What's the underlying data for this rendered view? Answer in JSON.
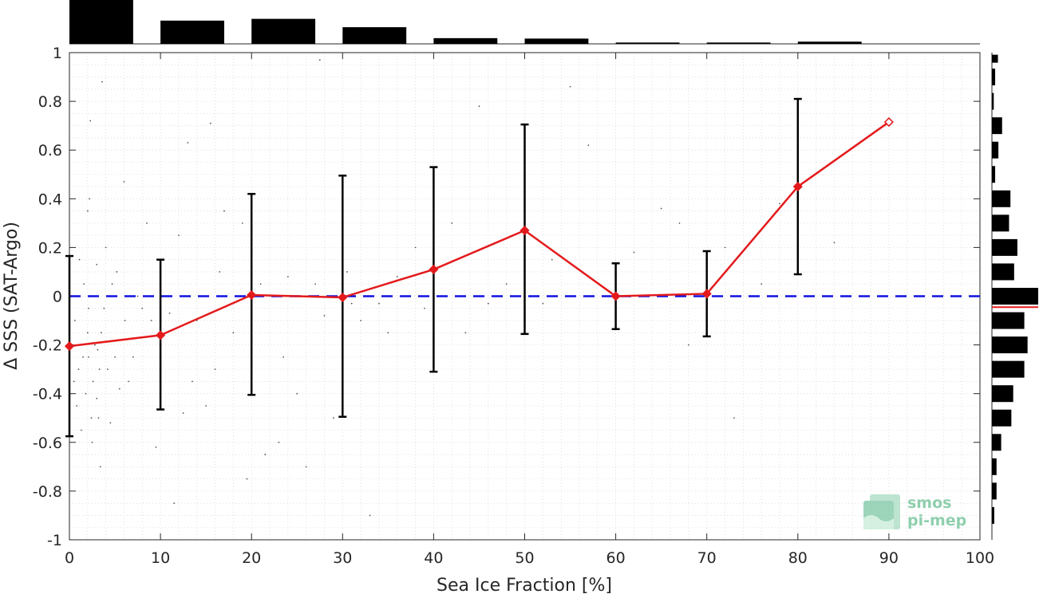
{
  "chart_data": {
    "type": "line",
    "xlabel": "Sea Ice Fraction [%]",
    "ylabel": "Δ SSS (SAT-Argo)",
    "xlim": [
      0,
      100
    ],
    "ylim": [
      -1,
      1
    ],
    "x_ticks": [
      "0",
      "10",
      "20",
      "30",
      "40",
      "50",
      "60",
      "70",
      "80",
      "90",
      "100"
    ],
    "y_ticks": [
      "1",
      "0.8",
      "0.6",
      "0.4",
      "0.2",
      "0",
      "-0.2",
      "-0.4",
      "-0.6",
      "-0.8",
      "-1"
    ],
    "grid": true,
    "series": [
      {
        "color": "#e31a1c",
        "marker": "diamond",
        "x": [
          0,
          10,
          20,
          30,
          40,
          50,
          60,
          70,
          80,
          90
        ],
        "y": [
          -0.205,
          -0.16,
          0.005,
          -0.005,
          0.11,
          0.27,
          0.0,
          0.01,
          0.45,
          0.715
        ],
        "err_low": [
          -0.575,
          -0.465,
          -0.405,
          -0.495,
          -0.31,
          -0.155,
          -0.135,
          -0.165,
          0.09,
          null
        ],
        "err_high": [
          0.165,
          0.15,
          0.42,
          0.495,
          0.53,
          0.705,
          0.135,
          0.185,
          0.81,
          null
        ]
      }
    ],
    "reference_line": {
      "y": 0,
      "style": "dashed",
      "color": "#1010e0"
    },
    "top_histogram": {
      "bin_edges": [
        0,
        10,
        20,
        30,
        40,
        50,
        60,
        70,
        80,
        90
      ],
      "relative_counts": [
        1.0,
        0.53,
        0.57,
        0.38,
        0.13,
        0.12,
        0.03,
        0.03,
        0.05
      ]
    },
    "right_histogram": {
      "bin_centers": [
        0.975,
        0.9,
        0.8,
        0.7,
        0.6,
        0.5,
        0.4,
        0.3,
        0.2,
        0.1,
        0.0,
        -0.1,
        -0.2,
        -0.3,
        -0.4,
        -0.5,
        -0.6,
        -0.7,
        -0.8,
        -0.9
      ],
      "relative_counts": [
        0.13,
        0.07,
        0.04,
        0.22,
        0.14,
        0.07,
        0.4,
        0.37,
        0.55,
        0.48,
        1.0,
        0.7,
        0.77,
        0.7,
        0.46,
        0.42,
        0.2,
        0.1,
        0.1,
        0.05
      ],
      "mean_line": {
        "y": -0.045,
        "color": "#e31a1c"
      }
    },
    "scatter_points": [
      [
        0.4,
        -0.2
      ],
      [
        0.5,
        -0.35
      ],
      [
        0.6,
        -0.1
      ],
      [
        0.8,
        -0.45
      ],
      [
        1.0,
        -0.3
      ],
      [
        1.1,
        0.15
      ],
      [
        1.3,
        -0.55
      ],
      [
        1.5,
        -0.25
      ],
      [
        1.6,
        0.05
      ],
      [
        1.8,
        -0.4
      ],
      [
        2.0,
        0.35
      ],
      [
        2.0,
        -0.15
      ],
      [
        2.1,
        -0.05
      ],
      [
        2.1,
        -0.25
      ],
      [
        2.2,
        0.0
      ],
      [
        2.2,
        0.4
      ],
      [
        2.3,
        0.72
      ],
      [
        2.4,
        -0.5
      ],
      [
        2.5,
        -0.6
      ],
      [
        2.6,
        -0.35
      ],
      [
        2.8,
        -0.2
      ],
      [
        3.0,
        -0.42
      ],
      [
        3.0,
        0.13
      ],
      [
        3.1,
        -0.22
      ],
      [
        3.2,
        -0.5
      ],
      [
        3.3,
        -0.3
      ],
      [
        3.4,
        -0.7
      ],
      [
        3.5,
        -0.15
      ],
      [
        3.6,
        0.88
      ],
      [
        3.8,
        -0.05
      ],
      [
        4.0,
        0.2
      ],
      [
        4.2,
        -0.3
      ],
      [
        4.5,
        -0.52
      ],
      [
        4.7,
        0.05
      ],
      [
        5.0,
        -0.25
      ],
      [
        5.2,
        0.1
      ],
      [
        5.5,
        -0.38
      ],
      [
        6.0,
        0.47
      ],
      [
        6.1,
        -0.1
      ],
      [
        6.5,
        -0.35
      ],
      [
        7.0,
        -0.25
      ],
      [
        7.5,
        0.0
      ],
      [
        8.0,
        -0.05
      ],
      [
        8.5,
        0.3
      ],
      [
        9.0,
        -0.1
      ],
      [
        11.0,
        -0.07
      ],
      [
        12.0,
        0.25
      ],
      [
        12.5,
        -0.48
      ],
      [
        13.0,
        0.63
      ],
      [
        13.5,
        -0.35
      ],
      [
        14.0,
        -0.1
      ],
      [
        15.0,
        -0.45
      ],
      [
        15.5,
        0.71
      ],
      [
        16.0,
        -0.3
      ],
      [
        16.5,
        0.1
      ],
      [
        17.0,
        0.35
      ],
      [
        18.0,
        -0.15
      ],
      [
        19.0,
        0.3
      ],
      [
        21.0,
        0.05
      ],
      [
        21.5,
        -0.65
      ],
      [
        22.0,
        0.0
      ],
      [
        23.0,
        -0.6
      ],
      [
        24.0,
        0.08
      ],
      [
        25.0,
        -0.4
      ],
      [
        26.0,
        -0.7
      ],
      [
        27.0,
        0.05
      ],
      [
        28.0,
        -0.08
      ],
      [
        29.0,
        -0.5
      ],
      [
        30.5,
        0.1
      ],
      [
        31.0,
        -0.03
      ],
      [
        32.0,
        -0.1
      ],
      [
        33.0,
        -0.9
      ],
      [
        34.0,
        -0.03
      ],
      [
        35.0,
        -0.15
      ],
      [
        36.0,
        0.08
      ],
      [
        38.0,
        0.2
      ],
      [
        39.0,
        -0.05
      ],
      [
        42.0,
        0.3
      ],
      [
        43.5,
        -0.15
      ],
      [
        45.0,
        0.78
      ],
      [
        46.0,
        -0.03
      ],
      [
        48.0,
        0.05
      ],
      [
        52.0,
        -0.03
      ],
      [
        53.0,
        0.15
      ],
      [
        55.0,
        0.86
      ],
      [
        57.0,
        0.62
      ],
      [
        62.0,
        0.18
      ],
      [
        65.0,
        0.36
      ],
      [
        67.0,
        0.3
      ],
      [
        68.0,
        -0.2
      ],
      [
        72.0,
        0.2
      ],
      [
        73.0,
        -0.5
      ],
      [
        76.0,
        0.05
      ],
      [
        78.0,
        0.38
      ],
      [
        84.0,
        0.22
      ],
      [
        19.5,
        -0.75
      ],
      [
        23.5,
        -0.25
      ],
      [
        9.5,
        -0.62
      ],
      [
        11.5,
        -0.85
      ],
      [
        27.5,
        0.97
      ]
    ]
  },
  "logo": {
    "line1": "smos",
    "line2": "pi-mep"
  }
}
